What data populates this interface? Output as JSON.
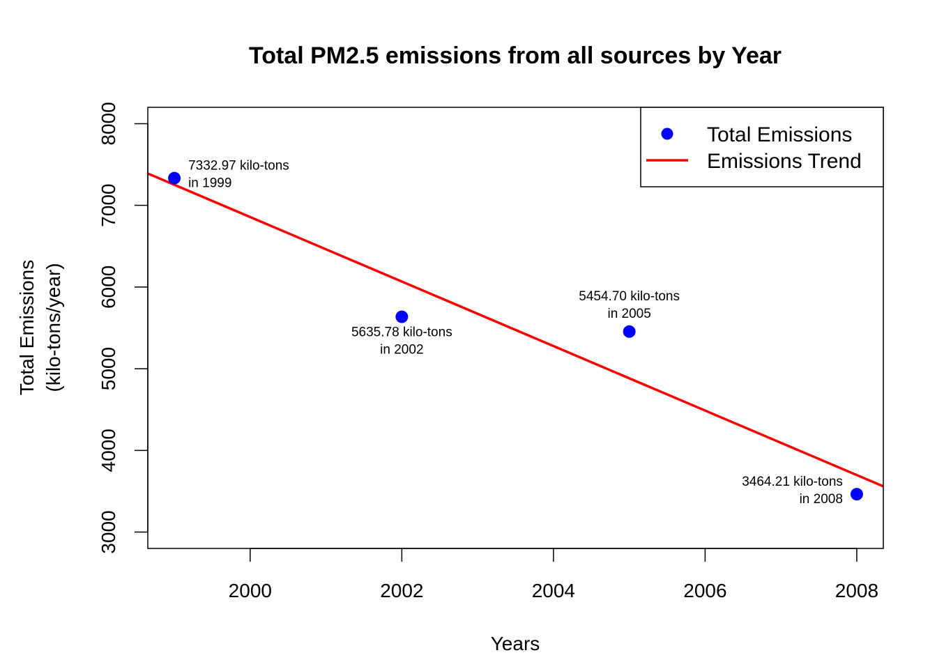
{
  "chart_data": {
    "type": "scatter",
    "title": "Total PM2.5 emissions from all sources by Year",
    "xlabel": "Years",
    "ylabel": [
      "Total Emissions",
      "(kilo-tons/year)"
    ],
    "xlim": [
      1998.65,
      2008.35
    ],
    "ylim": [
      2800,
      8200
    ],
    "x_ticks": [
      2000,
      2002,
      2004,
      2006,
      2008
    ],
    "y_ticks": [
      3000,
      4000,
      5000,
      6000,
      7000,
      8000
    ],
    "grid": false,
    "legend_position": "top-right",
    "legend": [
      {
        "label": "Total Emissions",
        "kind": "point",
        "color": "#0000ff"
      },
      {
        "label": "Emissions Trend",
        "kind": "line",
        "color": "#ff0000"
      }
    ],
    "series": [
      {
        "kind": "points",
        "color": "#0000ff",
        "x": [
          1999,
          2002,
          2005,
          2008
        ],
        "y": [
          7332.97,
          5635.78,
          5454.7,
          3464.21
        ]
      },
      {
        "kind": "trend",
        "color": "#ff0000",
        "x": [
          1998.65,
          2008.35
        ],
        "y": [
          7390,
          3560
        ]
      }
    ],
    "annotations": [
      {
        "lines": [
          "7332.97 kilo-tons",
          "in 1999"
        ],
        "x": 1999,
        "y": 7332.97,
        "position": "right"
      },
      {
        "lines": [
          "5635.78 kilo-tons",
          "in 2002"
        ],
        "x": 2002,
        "y": 5635.78,
        "position": "below"
      },
      {
        "lines": [
          "5454.70 kilo-tons",
          "in 2005"
        ],
        "x": 2005,
        "y": 5454.7,
        "position": "above"
      },
      {
        "lines": [
          "3464.21 kilo-tons",
          "in 2008"
        ],
        "x": 2008,
        "y": 3464.21,
        "position": "left"
      }
    ]
  }
}
